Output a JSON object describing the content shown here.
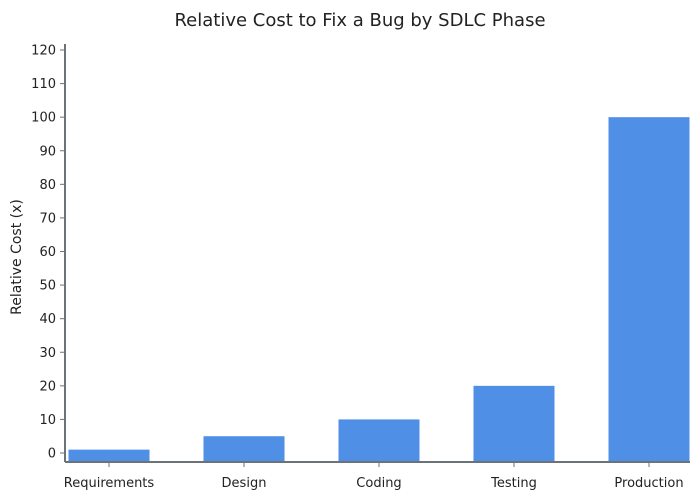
{
  "chart_data": {
    "type": "bar",
    "title": "Relative Cost to Fix a Bug by SDLC Phase",
    "xlabel": "",
    "ylabel": "Relative Cost (x)",
    "categories": [
      "Requirements",
      "Design",
      "Coding",
      "Testing",
      "Production"
    ],
    "values": [
      1,
      5,
      10,
      20,
      100
    ],
    "ylim": [
      0,
      120
    ],
    "yticks": [
      0,
      10,
      20,
      30,
      40,
      50,
      60,
      70,
      80,
      90,
      100,
      110,
      120
    ],
    "grid": false,
    "legend": null,
    "bar_color": "#4f8fe6",
    "axis_color": "#6b7378"
  }
}
